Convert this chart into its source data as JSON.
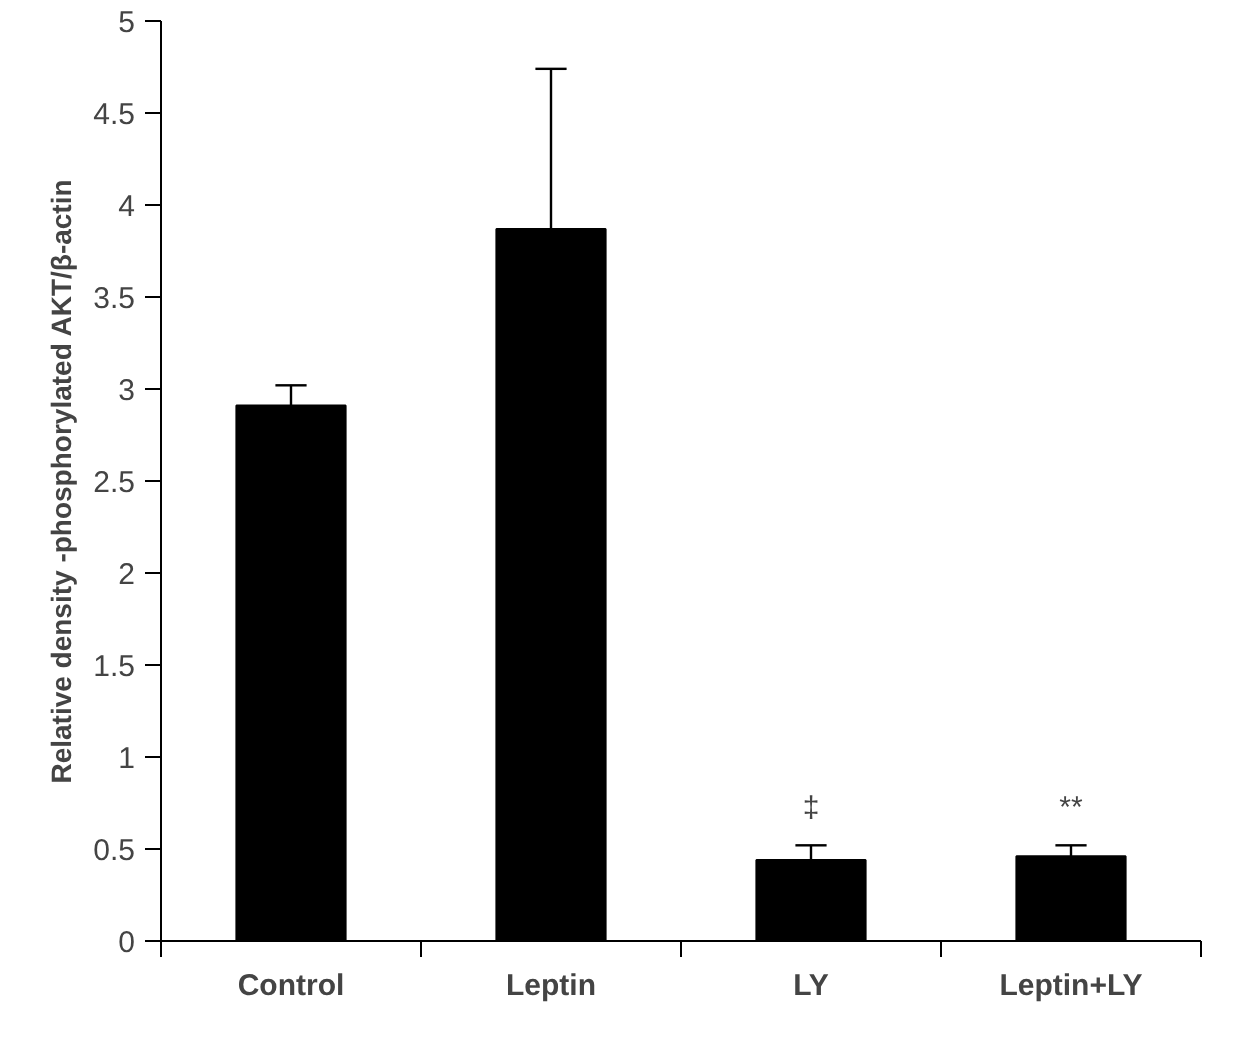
{
  "chart_data": {
    "type": "bar",
    "ylabel": "Relative density -phosphorylated AKT/β-actin",
    "categories": [
      "Control",
      "Leptin",
      "LY",
      "Leptin+LY"
    ],
    "values": [
      2.91,
      3.87,
      0.44,
      0.46
    ],
    "errors": [
      [
        2.91,
        3.02
      ],
      [
        3.87,
        4.74
      ],
      [
        0.44,
        0.52
      ],
      [
        0.46,
        0.52
      ]
    ],
    "color": "#000000",
    "ylim": [
      0,
      5
    ],
    "yticks": [
      0,
      {
        "value": 0.5,
        "label": "0.5"
      },
      1,
      {
        "value": 1.5,
        "label": "1.5"
      },
      2,
      {
        "value": 2.5,
        "label": "2.5"
      },
      3,
      {
        "value": 3.5,
        "label": "3.5"
      },
      4,
      {
        "value": 4.5,
        "label": "4.5"
      },
      5
    ],
    "annotations": [
      "‡",
      "**"
    ],
    "grid": false
  }
}
